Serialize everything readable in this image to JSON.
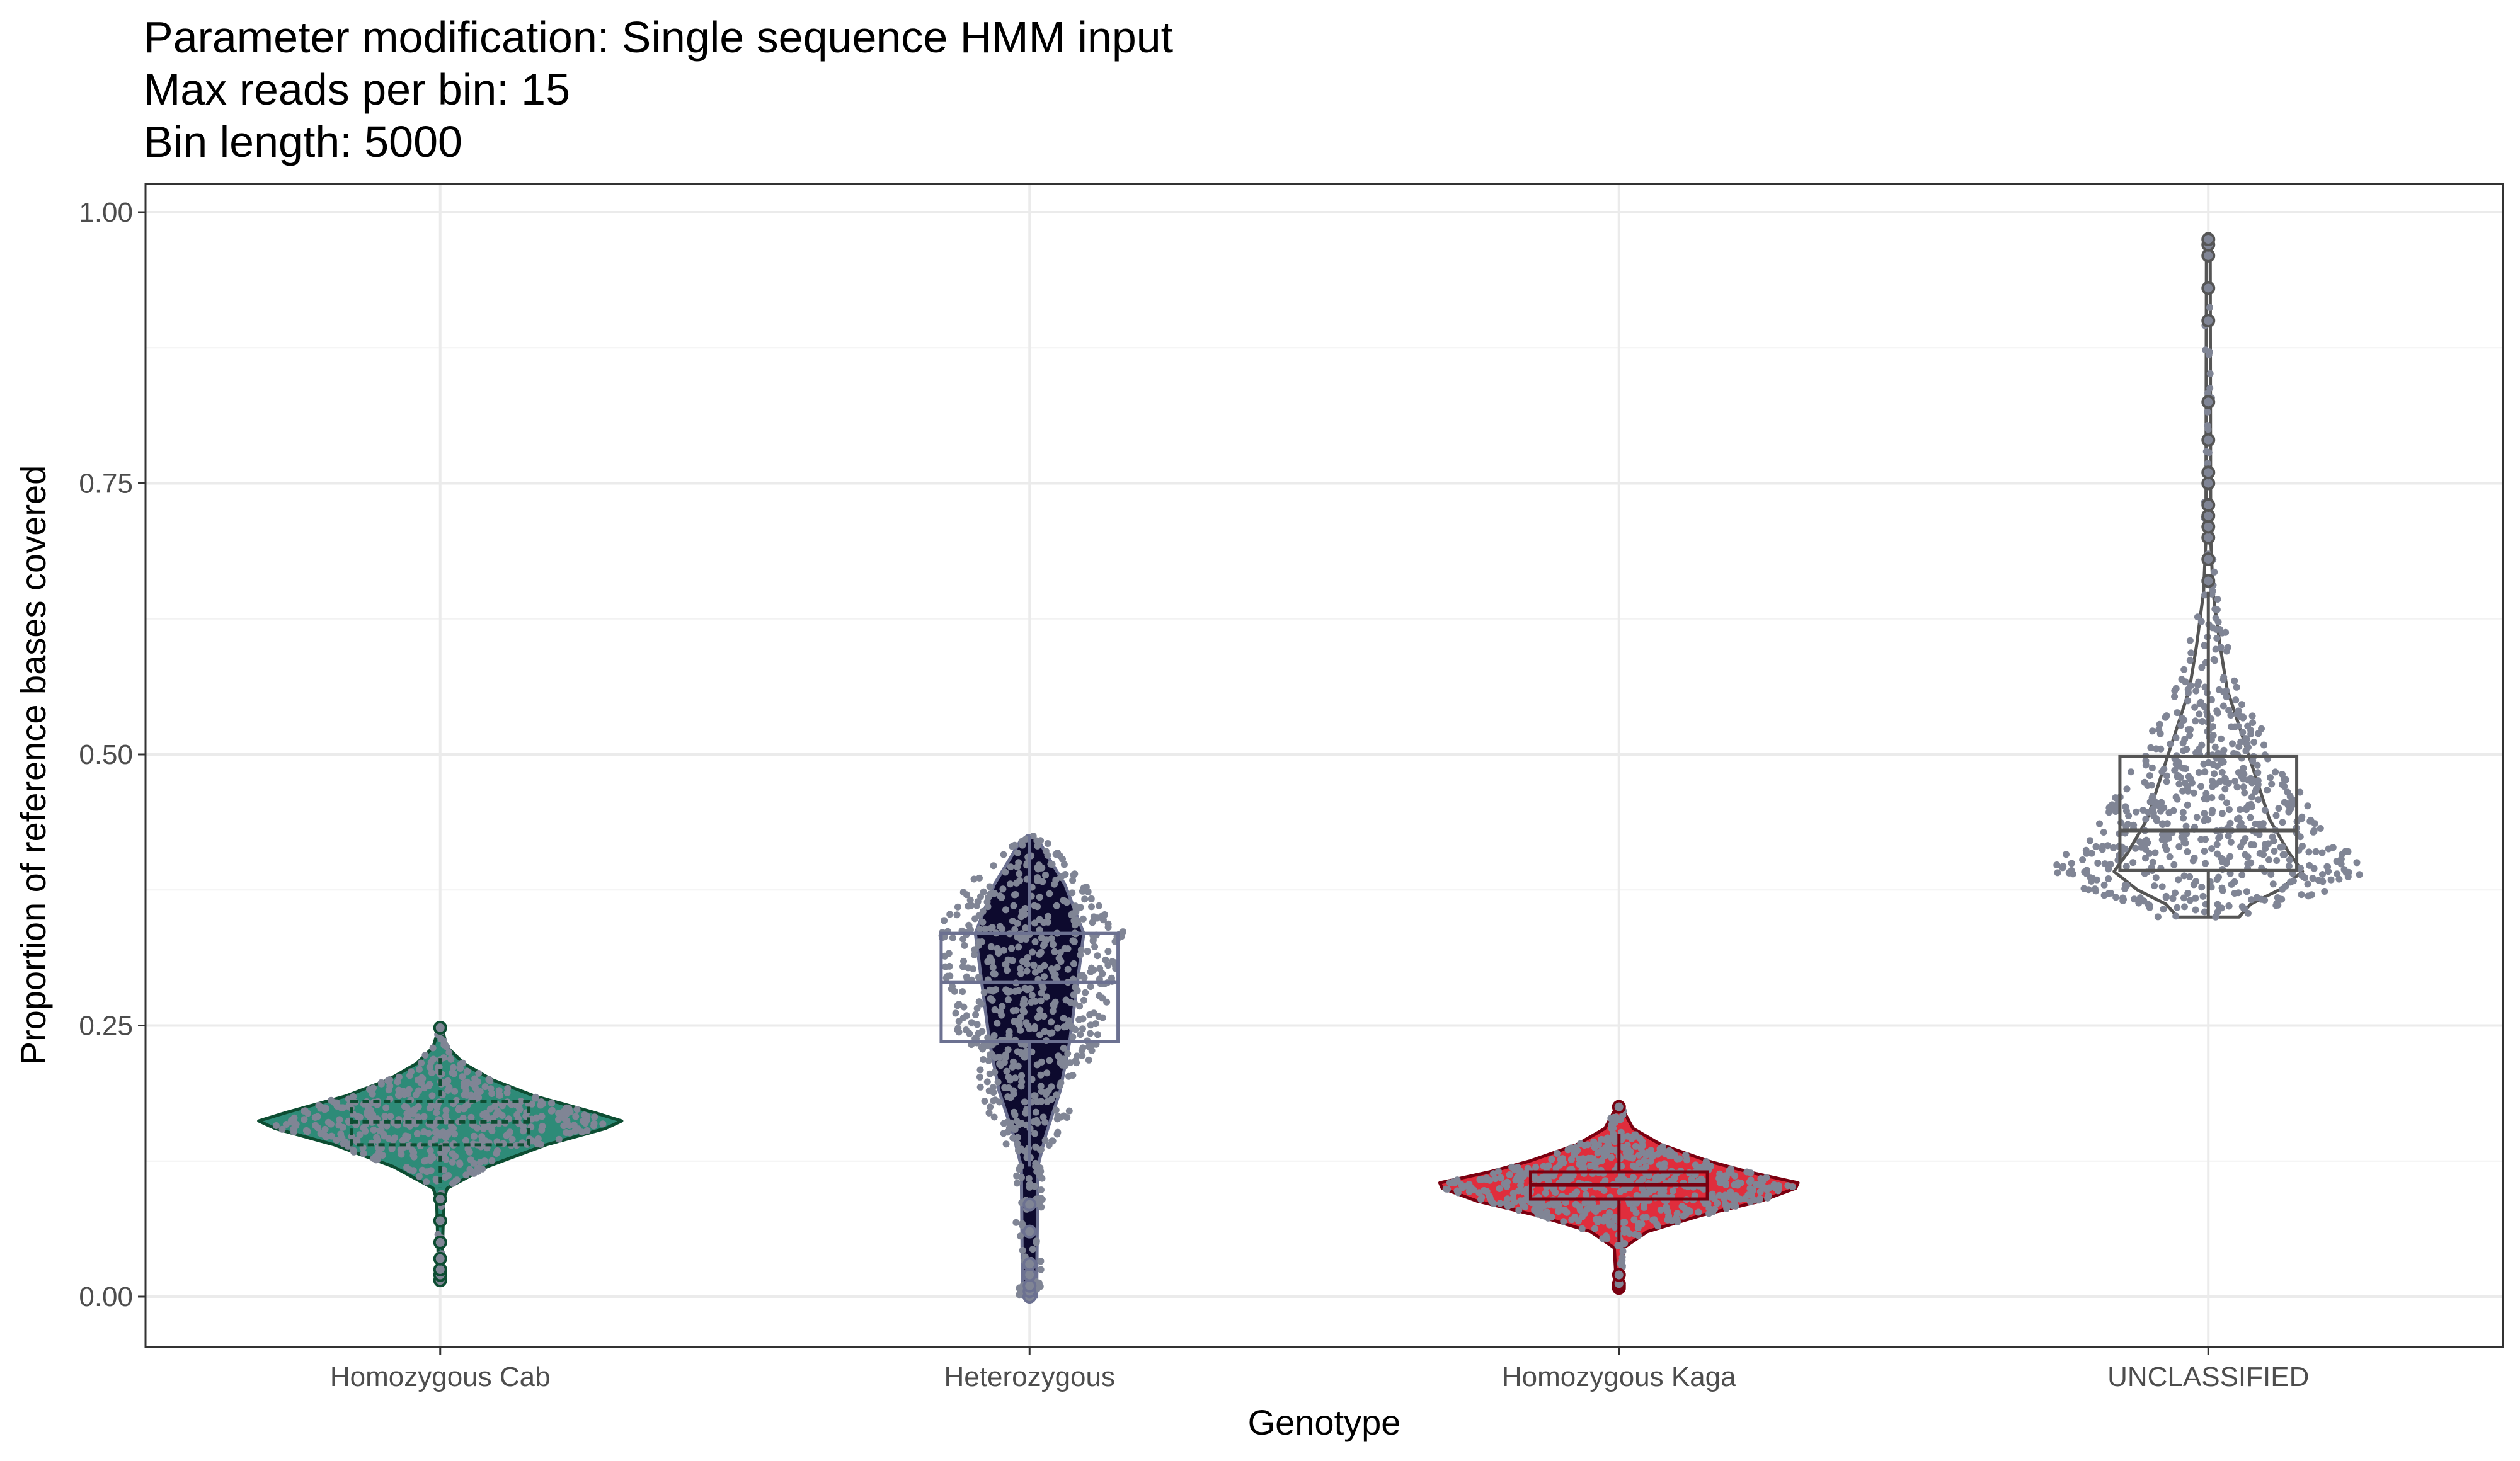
{
  "chart_data": {
    "type": "violin",
    "title_lines": [
      "Parameter modification: Single sequence HMM input",
      "Max reads per bin: 15",
      "Bin length: 5000"
    ],
    "xlabel": "Genotype",
    "ylabel": "Proportion of reference bases covered",
    "ylim": [
      -0.045,
      1.025
    ],
    "yticks": [
      0.0,
      0.25,
      0.5,
      0.75,
      1.0
    ],
    "ytick_labels": [
      "0.00",
      "0.25",
      "0.50",
      "0.75",
      "1.00"
    ],
    "grid": true,
    "legend": "none",
    "point_color": "#808595",
    "categories": [
      "Homozygous Cab",
      "Heterozygous",
      "Homozygous Kaga",
      "UNCLASSIFIED"
    ],
    "groups": [
      {
        "name": "Homozygous Cab",
        "fill": "#2e8b78",
        "outline": "#0d4d32",
        "box": {
          "q1": 0.14,
          "median": 0.161,
          "q3": 0.18,
          "whisker_low": 0.1,
          "whisker_high": 0.22
        },
        "violin": [
          [
            0.015,
            0.006
          ],
          [
            0.09,
            0.015
          ],
          [
            0.1,
            0.03
          ],
          [
            0.12,
            0.2
          ],
          [
            0.14,
            0.45
          ],
          [
            0.155,
            0.7
          ],
          [
            0.162,
            0.77
          ],
          [
            0.17,
            0.65
          ],
          [
            0.185,
            0.4
          ],
          [
            0.2,
            0.22
          ],
          [
            0.215,
            0.1
          ],
          [
            0.23,
            0.03
          ],
          [
            0.248,
            0.006
          ]
        ],
        "outliers": [
          0.015,
          0.02,
          0.025,
          0.035,
          0.05,
          0.07,
          0.09,
          0.248
        ],
        "point_center": 0.16,
        "point_count": 500
      },
      {
        "name": "Heterozygous",
        "fill": "#0d0a2e",
        "outline": "#6c7191",
        "box": {
          "q1": 0.235,
          "median": 0.29,
          "q3": 0.335,
          "whisker_low": 0.12,
          "whisker_high": 0.425
        },
        "violin": [
          [
            0.0,
            0.03
          ],
          [
            0.12,
            0.035
          ],
          [
            0.15,
            0.07
          ],
          [
            0.19,
            0.13
          ],
          [
            0.235,
            0.17
          ],
          [
            0.335,
            0.23
          ],
          [
            0.38,
            0.15
          ],
          [
            0.405,
            0.08
          ],
          [
            0.42,
            0.04
          ],
          [
            0.425,
            0.01
          ]
        ],
        "outliers": [
          0.0,
          0.0,
          0.005,
          0.01,
          0.02,
          0.03,
          0.06,
          0.085
        ],
        "point_center": 0.29,
        "point_count": 650
      },
      {
        "name": "Homozygous Kaga",
        "fill": "#e02d3c",
        "outline": "#7a0010",
        "box": {
          "q1": 0.09,
          "median": 0.103,
          "q3": 0.115,
          "whisker_low": 0.05,
          "whisker_high": 0.15
        },
        "violin": [
          [
            0.008,
            0.01
          ],
          [
            0.045,
            0.02
          ],
          [
            0.06,
            0.12
          ],
          [
            0.075,
            0.35
          ],
          [
            0.088,
            0.6
          ],
          [
            0.1,
            0.75
          ],
          [
            0.105,
            0.76
          ],
          [
            0.115,
            0.55
          ],
          [
            0.125,
            0.38
          ],
          [
            0.14,
            0.18
          ],
          [
            0.155,
            0.06
          ],
          [
            0.175,
            0.01
          ]
        ],
        "outliers": [
          0.008,
          0.01,
          0.012,
          0.02,
          0.175
        ],
        "point_center": 0.103,
        "point_count": 600
      },
      {
        "name": "UNCLASSIFIED",
        "fill": "#ffffff",
        "outline": "#555555",
        "box": {
          "q1": 0.393,
          "median": 0.43,
          "q3": 0.498,
          "whisker_low": 0.35,
          "whisker_high": 0.65
        },
        "violin": [
          [
            0.35,
            0.13
          ],
          [
            0.362,
            0.18
          ],
          [
            0.375,
            0.3
          ],
          [
            0.392,
            0.4
          ],
          [
            0.41,
            0.34
          ],
          [
            0.44,
            0.26
          ],
          [
            0.48,
            0.2
          ],
          [
            0.52,
            0.14
          ],
          [
            0.56,
            0.08
          ],
          [
            0.6,
            0.05
          ],
          [
            0.65,
            0.02
          ],
          [
            0.7,
            0.01
          ],
          [
            0.98,
            0.008
          ]
        ],
        "outliers": [
          0.66,
          0.68,
          0.7,
          0.71,
          0.72,
          0.73,
          0.75,
          0.76,
          0.79,
          0.825,
          0.9,
          0.93,
          0.96,
          0.97,
          0.975
        ],
        "point_center": 0.43,
        "point_count": 650
      }
    ]
  }
}
